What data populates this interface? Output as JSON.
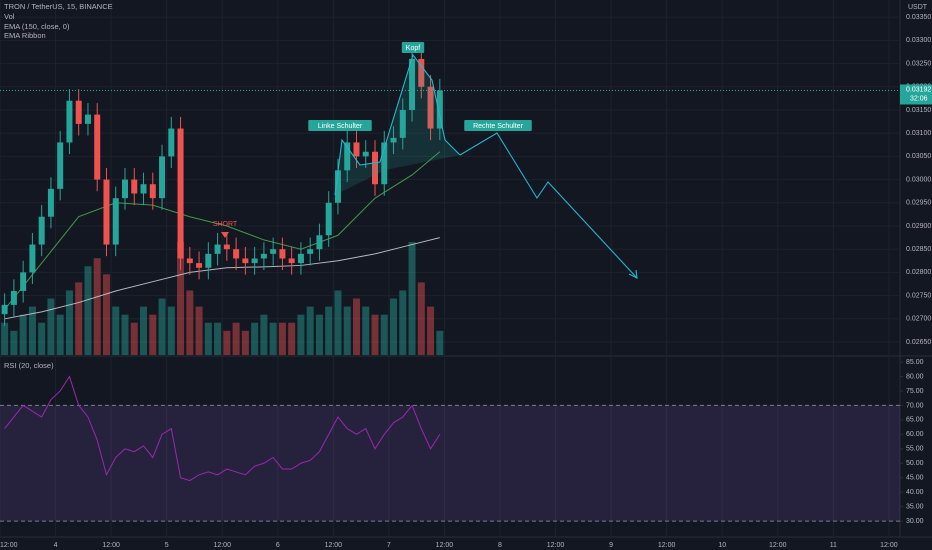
{
  "chart_data": [
    {
      "type": "candlestick",
      "title": "TRON / TetherUS, 15, BINANCE",
      "currency": "USDT",
      "volume_label": "Vol",
      "countdown": "32:06",
      "up_color": "#26a69a",
      "down_color": "#ef5350",
      "x": [
        1,
        3,
        5,
        7,
        9,
        11,
        13,
        15,
        17,
        19,
        21,
        23,
        25,
        27,
        29,
        31,
        33,
        35,
        37,
        39,
        41,
        43,
        45,
        47,
        49,
        51,
        53,
        55,
        57,
        59,
        61,
        63,
        65,
        67,
        69,
        71,
        73,
        75,
        77,
        79,
        81,
        83,
        85,
        87,
        89,
        91,
        93,
        95
      ],
      "open": [
        0.0271,
        0.0273,
        0.0276,
        0.028,
        0.0286,
        0.0292,
        0.0298,
        0.0308,
        0.0317,
        0.0312,
        0.0314,
        0.03,
        0.0286,
        0.0296,
        0.03,
        0.0297,
        0.0299,
        0.0296,
        0.0305,
        0.0311,
        0.0283,
        0.0282,
        0.0281,
        0.0284,
        0.0286,
        0.0285,
        0.0283,
        0.0282,
        0.0283,
        0.0284,
        0.0285,
        0.0283,
        0.0282,
        0.0284,
        0.0285,
        0.0288,
        0.0295,
        0.0302,
        0.0308,
        0.0305,
        0.0306,
        0.0299,
        0.0308,
        0.0309,
        0.0315,
        0.0326,
        0.032,
        0.0311
      ],
      "high": [
        0.02755,
        0.02785,
        0.02825,
        0.02885,
        0.02945,
        0.03005,
        0.03105,
        0.03195,
        0.03195,
        0.03165,
        0.03165,
        0.03025,
        0.02985,
        0.03025,
        0.03025,
        0.03015,
        0.03015,
        0.03075,
        0.03135,
        0.03135,
        0.02855,
        0.02845,
        0.02865,
        0.02885,
        0.02885,
        0.02875,
        0.02855,
        0.02855,
        0.02865,
        0.02875,
        0.02875,
        0.02855,
        0.02865,
        0.02875,
        0.02905,
        0.02975,
        0.03045,
        0.03105,
        0.03105,
        0.03085,
        0.03085,
        0.03105,
        0.03115,
        0.03175,
        0.03285,
        0.03285,
        0.03225,
        0.03217
      ],
      "low": [
        0.02685,
        0.02705,
        0.02735,
        0.02775,
        0.02835,
        0.02895,
        0.02955,
        0.03055,
        0.03095,
        0.03095,
        0.02975,
        0.02835,
        0.02835,
        0.02935,
        0.02945,
        0.02945,
        0.02935,
        0.02935,
        0.03025,
        0.02805,
        0.02795,
        0.02785,
        0.02785,
        0.02815,
        0.02825,
        0.02805,
        0.02795,
        0.02795,
        0.02805,
        0.02815,
        0.02805,
        0.02795,
        0.02795,
        0.02815,
        0.02825,
        0.02855,
        0.02925,
        0.02995,
        0.03025,
        0.03025,
        0.02965,
        0.02965,
        0.03055,
        0.03065,
        0.03125,
        0.03175,
        0.03085,
        0.03085
      ],
      "close": [
        0.0273,
        0.0276,
        0.028,
        0.0286,
        0.0292,
        0.0298,
        0.0308,
        0.0317,
        0.0312,
        0.0314,
        0.03,
        0.0286,
        0.0296,
        0.03,
        0.0297,
        0.0299,
        0.0296,
        0.0305,
        0.0311,
        0.0283,
        0.0282,
        0.0281,
        0.0284,
        0.0286,
        0.0285,
        0.0283,
        0.0282,
        0.0283,
        0.0284,
        0.0285,
        0.0283,
        0.0282,
        0.0284,
        0.0285,
        0.0288,
        0.0295,
        0.0302,
        0.0308,
        0.0305,
        0.0306,
        0.0299,
        0.0308,
        0.0309,
        0.0315,
        0.0326,
        0.032,
        0.0311,
        0.03192
      ],
      "volume": [
        20,
        15,
        25,
        30,
        20,
        35,
        25,
        40,
        45,
        55,
        60,
        50,
        30,
        25,
        20,
        30,
        25,
        35,
        30,
        70,
        40,
        30,
        20,
        20,
        15,
        20,
        15,
        20,
        25,
        20,
        20,
        20,
        25,
        30,
        25,
        30,
        40,
        30,
        35,
        30,
        25,
        25,
        35,
        40,
        70,
        45,
        30,
        15
      ],
      "vlim": [
        0,
        220
      ],
      "series": [
        {
          "name": "EMA (150, close, 0)",
          "color": "#d1d4dc",
          "x": [
            1,
            9,
            17,
            25,
            33,
            41,
            49,
            57,
            65,
            73,
            81,
            89,
            95
          ],
          "values": [
            0.027,
            0.02715,
            0.02735,
            0.0276,
            0.0278,
            0.028,
            0.0281,
            0.02812,
            0.02815,
            0.02825,
            0.0284,
            0.0286,
            0.02875
          ]
        },
        {
          "name": "EMA Ribbon",
          "color": "#4caf50",
          "x": [
            1,
            9,
            17,
            25,
            33,
            41,
            49,
            57,
            65,
            73,
            81,
            89,
            95
          ],
          "values": [
            0.0272,
            0.0282,
            0.0292,
            0.0295,
            0.02945,
            0.0292,
            0.029,
            0.0287,
            0.0285,
            0.0288,
            0.0296,
            0.0301,
            0.0306
          ]
        }
      ],
      "annotations": [
        "Kopf",
        "Linke Schulter",
        "Rechte Schulter",
        "SHORT"
      ],
      "xlim": [
        0,
        194.4
      ],
      "xticks": [
        {
          "value": 0,
          "label": "12:00"
        },
        {
          "value": 12,
          "label": "4"
        },
        {
          "value": 24,
          "label": "12:00"
        },
        {
          "value": 36,
          "label": "5"
        },
        {
          "value": 48,
          "label": "12:00"
        },
        {
          "value": 60,
          "label": "6"
        },
        {
          "value": 72,
          "label": "12:00"
        },
        {
          "value": 84,
          "label": "7"
        },
        {
          "value": 96,
          "label": "12:00"
        },
        {
          "value": 108,
          "label": "8"
        },
        {
          "value": 120,
          "label": "12:00"
        },
        {
          "value": 132,
          "label": "9"
        },
        {
          "value": 144,
          "label": "12:00"
        },
        {
          "value": 156,
          "label": "10"
        },
        {
          "value": 168,
          "label": "12:00"
        },
        {
          "value": 180,
          "label": "11"
        },
        {
          "value": 192,
          "label": "12:00"
        }
      ],
      "ylim": [
        0.02622,
        0.03387
      ],
      "yticks": [
        {
          "value": 0.0265,
          "label": "0.02650"
        },
        {
          "value": 0.027,
          "label": "0.02700"
        },
        {
          "value": 0.0275,
          "label": "0.02750"
        },
        {
          "value": 0.028,
          "label": "0.02800"
        },
        {
          "value": 0.0285,
          "label": "0.02850"
        },
        {
          "value": 0.029,
          "label": "0.02900"
        },
        {
          "value": 0.0295,
          "label": "0.02950"
        },
        {
          "value": 0.03,
          "label": "0.03000"
        },
        {
          "value": 0.0305,
          "label": "0.03050"
        },
        {
          "value": 0.031,
          "label": "0.03100"
        },
        {
          "value": 0.0315,
          "label": "0.03150"
        },
        {
          "value": 0.032,
          "label": "0.03200"
        },
        {
          "value": 0.0325,
          "label": "0.03250"
        },
        {
          "value": 0.033,
          "label": "0.03300"
        },
        {
          "value": 0.0335,
          "label": "0.03350"
        }
      ]
    },
    {
      "type": "line",
      "title": "RSI (20, close)",
      "color": "#9c27b0",
      "x": [
        1,
        3,
        5,
        7,
        9,
        11,
        13,
        15,
        17,
        19,
        21,
        23,
        25,
        27,
        29,
        31,
        33,
        35,
        37,
        39,
        41,
        43,
        45,
        47,
        49,
        51,
        53,
        55,
        57,
        59,
        61,
        63,
        65,
        67,
        69,
        71,
        73,
        75,
        77,
        79,
        81,
        83,
        85,
        87,
        89,
        91,
        93,
        95
      ],
      "values": [
        62,
        66,
        70,
        68,
        66,
        72,
        75,
        80,
        70,
        66,
        58,
        46,
        52,
        55,
        54,
        56,
        52,
        60,
        62,
        45,
        44,
        46,
        47,
        46,
        48,
        47,
        46,
        49,
        50,
        52,
        48,
        48,
        50,
        51,
        54,
        60,
        66,
        62,
        60,
        62,
        55,
        60,
        64,
        66,
        70,
        62,
        55,
        60
      ],
      "bands": [
        30,
        70
      ],
      "ylim": [
        24.5,
        86.4
      ],
      "yticks": [
        {
          "value": 30,
          "label": "30.00"
        },
        {
          "value": 35,
          "label": "35.00"
        },
        {
          "value": 40,
          "label": "40.00"
        },
        {
          "value": 45,
          "label": "45.00"
        },
        {
          "value": 50,
          "label": "50.00"
        },
        {
          "value": 55,
          "label": "55.00"
        },
        {
          "value": 60,
          "label": "60.00"
        },
        {
          "value": 65,
          "label": "65.00"
        },
        {
          "value": 70,
          "label": "70.00"
        },
        {
          "value": 75,
          "label": "75.00"
        },
        {
          "value": 80,
          "label": "80.00"
        },
        {
          "value": 85,
          "label": "85.00"
        }
      ]
    }
  ]
}
